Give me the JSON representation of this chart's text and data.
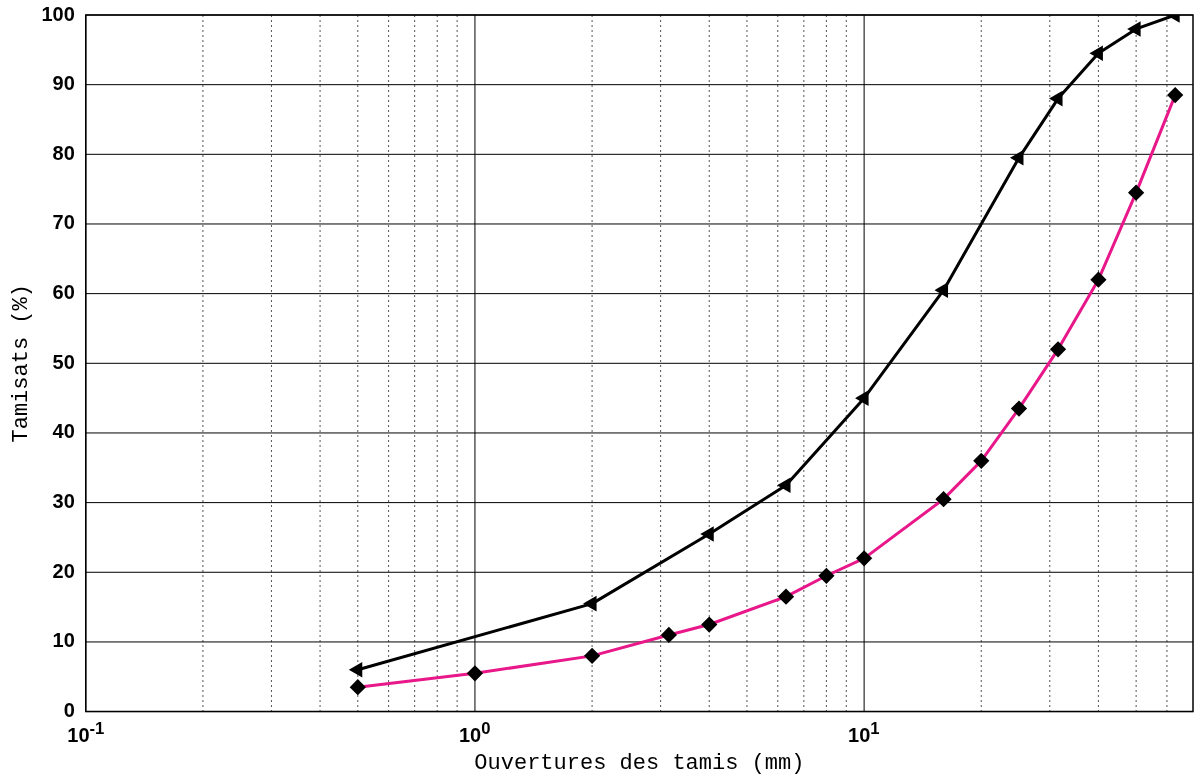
{
  "chart_data": {
    "type": "line",
    "xlabel": "Ouvertures des tamis (mm)",
    "ylabel": "Tamisats (%)",
    "log": "x",
    "grid": true,
    "legend": false,
    "line_style": "solid",
    "xlim": [
      0.1,
      70
    ],
    "ylim": [
      0,
      100
    ],
    "xticks": [
      {
        "value": 0.1,
        "label": "10$^{-1}$"
      },
      {
        "value": 0.2,
        "label": null
      },
      {
        "value": 0.3,
        "label": null
      },
      {
        "value": 0.4,
        "label": null
      },
      {
        "value": 0.5,
        "label": null
      },
      {
        "value": 0.6,
        "label": null
      },
      {
        "value": 0.7,
        "label": null
      },
      {
        "value": 0.8,
        "label": null
      },
      {
        "value": 0.9,
        "label": null
      },
      {
        "value": 1,
        "label": "10$^{0}$"
      },
      {
        "value": 2,
        "label": null
      },
      {
        "value": 3,
        "label": null
      },
      {
        "value": 4,
        "label": null
      },
      {
        "value": 5,
        "label": null
      },
      {
        "value": 6,
        "label": null
      },
      {
        "value": 7,
        "label": null
      },
      {
        "value": 8,
        "label": null
      },
      {
        "value": 9,
        "label": null
      },
      {
        "value": 10,
        "label": "10$^{1}$"
      },
      {
        "value": 20,
        "label": null
      },
      {
        "value": 30,
        "label": null
      },
      {
        "value": 40,
        "label": null
      },
      {
        "value": 50,
        "label": null
      },
      {
        "value": 60,
        "label": null
      }
    ],
    "yticks": [
      0,
      10,
      20,
      30,
      40,
      50,
      60,
      70,
      80,
      90,
      100
    ],
    "series": [
      {
        "color": "#000000",
        "marker": "triangle",
        "x": [
          0.5,
          2,
          4,
          6.3,
          10,
          16,
          25,
          31.5,
          40,
          50,
          63
        ],
        "values": [
          6,
          15.5,
          25.5,
          32.5,
          45,
          60.5,
          79.5,
          88,
          94.5,
          98,
          100
        ]
      },
      {
        "color": "#e8178a",
        "marker": "diamond",
        "x": [
          0.5,
          1,
          2,
          3.15,
          4,
          6.3,
          8,
          10,
          16,
          20,
          25,
          31.5,
          40,
          50,
          63
        ],
        "values": [
          3.5,
          5.5,
          8,
          11,
          12.5,
          16.5,
          19.5,
          22,
          30.5,
          36,
          43.5,
          52,
          62,
          74.5,
          88.5
        ]
      }
    ]
  }
}
